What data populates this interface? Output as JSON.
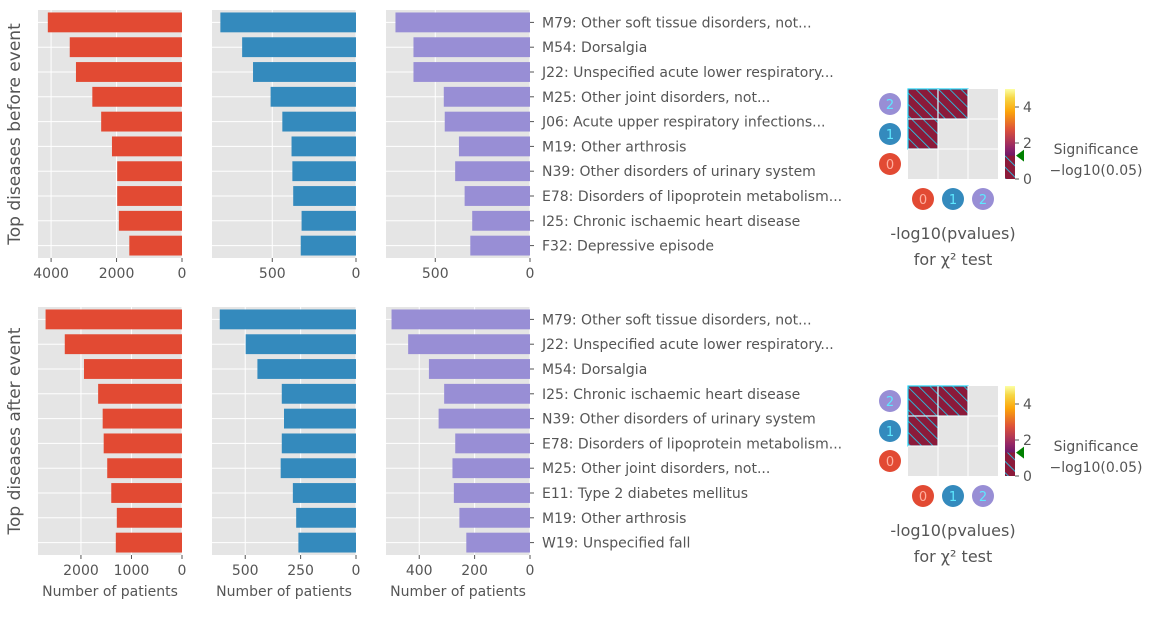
{
  "colors": {
    "panel_bg": "#e5e5e5",
    "grid": "#ffffff",
    "text": "#555555",
    "cluster_0": "#e24a33",
    "cluster_1": "#348abd",
    "cluster_2": "#988ed5",
    "hatch_cell": "#8b1a3a",
    "hatch_line": "#1fd4f5",
    "threshold_marker": "#008000"
  },
  "sections": [
    {
      "row_label": "Top diseases before event",
      "diseases": [
        "M79: Other soft tissue disorders, not...",
        "M54: Dorsalgia",
        "J22: Unspecified acute lower respiratory...",
        "M25: Other joint disorders, not...",
        "J06: Acute upper respiratory infections...",
        "M19: Other arthrosis",
        "N39: Other disorders of urinary system",
        "E78: Disorders of lipoprotein metabolism...",
        "I25: Chronic ischaemic heart disease",
        "F32: Depressive episode"
      ],
      "show_xlabel": false
    },
    {
      "row_label": "Top diseases after event",
      "diseases": [
        "M79: Other soft tissue disorders, not...",
        "J22: Unspecified acute lower respiratory...",
        "M54: Dorsalgia",
        "I25: Chronic ischaemic heart disease",
        "N39: Other disorders of urinary system",
        "E78: Disorders of lipoprotein metabolism...",
        "M25: Other joint disorders, not...",
        "E11: Type 2 diabetes mellitus",
        "M19: Other arthrosis",
        "W19: Unspecified fall"
      ],
      "show_xlabel": true
    }
  ],
  "chart_data": [
    {
      "type": "bar",
      "orientation": "horizontal",
      "x_inverted": true,
      "section": "before",
      "cluster": "0",
      "categories": [
        "M79",
        "M54",
        "J22",
        "M25",
        "J06",
        "M19",
        "N39",
        "E78",
        "I25",
        "F32"
      ],
      "values": [
        4100,
        3430,
        3240,
        2740,
        2470,
        2140,
        1980,
        1980,
        1930,
        1610
      ],
      "xlim": [
        0,
        4400
      ],
      "xticks": [
        4000,
        2000,
        0
      ],
      "xlabel": ""
    },
    {
      "type": "bar",
      "orientation": "horizontal",
      "x_inverted": true,
      "section": "before",
      "cluster": "1",
      "categories": [
        "M79",
        "M54",
        "J22",
        "M25",
        "J06",
        "M19",
        "N39",
        "E78",
        "I25",
        "F32"
      ],
      "values": [
        810,
        680,
        615,
        510,
        440,
        385,
        380,
        375,
        325,
        330
      ],
      "xlim": [
        0,
        860
      ],
      "xticks": [
        500,
        0
      ],
      "xlabel": ""
    },
    {
      "type": "bar",
      "orientation": "horizontal",
      "x_inverted": true,
      "section": "before",
      "cluster": "2",
      "categories": [
        "M79",
        "M54",
        "J22",
        "M25",
        "J06",
        "M19",
        "N39",
        "E78",
        "I25",
        "F32"
      ],
      "values": [
        710,
        615,
        615,
        455,
        450,
        375,
        395,
        345,
        305,
        315
      ],
      "xlim": [
        0,
        760
      ],
      "xticks": [
        500,
        0
      ],
      "xlabel": ""
    },
    {
      "type": "bar",
      "orientation": "horizontal",
      "x_inverted": true,
      "section": "after",
      "cluster": "0",
      "categories": [
        "M79",
        "J22",
        "M54",
        "I25",
        "N39",
        "E78",
        "M25",
        "E11",
        "M19",
        "W19"
      ],
      "values": [
        2700,
        2320,
        1940,
        1660,
        1570,
        1550,
        1480,
        1400,
        1290,
        1310
      ],
      "xlim": [
        0,
        2850
      ],
      "xticks": [
        2000,
        1000,
        0
      ],
      "xlabel": "Number of patients"
    },
    {
      "type": "bar",
      "orientation": "horizontal",
      "x_inverted": true,
      "section": "after",
      "cluster": "1",
      "categories": [
        "M79",
        "J22",
        "M54",
        "I25",
        "N39",
        "E78",
        "M25",
        "E11",
        "M19",
        "W19"
      ],
      "values": [
        615,
        498,
        445,
        335,
        325,
        335,
        340,
        285,
        270,
        260
      ],
      "xlim": [
        0,
        650
      ],
      "xticks": [
        500,
        250,
        0
      ],
      "xlabel": "Number of patients"
    },
    {
      "type": "bar",
      "orientation": "horizontal",
      "x_inverted": true,
      "section": "after",
      "cluster": "2",
      "categories": [
        "M79",
        "J22",
        "M54",
        "I25",
        "N39",
        "E78",
        "M25",
        "E11",
        "M19",
        "W19"
      ],
      "values": [
        500,
        440,
        365,
        310,
        330,
        270,
        280,
        275,
        255,
        230
      ],
      "xlim": [
        0,
        520
      ],
      "xticks": [
        400,
        200,
        0
      ],
      "xlabel": "Number of patients"
    },
    {
      "type": "heatmap",
      "section": "before",
      "x_labels": [
        "0",
        "1",
        "2"
      ],
      "y_labels": [
        "2",
        "1",
        "0"
      ],
      "significant": [
        [
          true,
          true,
          false
        ],
        [
          true,
          false,
          false
        ],
        [
          false,
          false,
          false
        ]
      ],
      "colorbar": {
        "range": [
          0,
          5
        ],
        "ticks": [
          "0",
          "2",
          "4"
        ],
        "threshold": 1.3
      },
      "title_line1": "-log10(pvalues)",
      "title_line2": "for χ² test",
      "legend": [
        "Significance",
        "−log10(0.05)"
      ]
    },
    {
      "type": "heatmap",
      "section": "after",
      "x_labels": [
        "0",
        "1",
        "2"
      ],
      "y_labels": [
        "2",
        "1",
        "0"
      ],
      "significant": [
        [
          true,
          true,
          false
        ],
        [
          true,
          false,
          false
        ],
        [
          false,
          false,
          false
        ]
      ],
      "colorbar": {
        "range": [
          0,
          5
        ],
        "ticks": [
          "0",
          "2",
          "4"
        ],
        "threshold": 1.3
      },
      "title_line1": "-log10(pvalues)",
      "title_line2": "for χ² test",
      "legend": [
        "Significance",
        "−log10(0.05)"
      ]
    }
  ]
}
